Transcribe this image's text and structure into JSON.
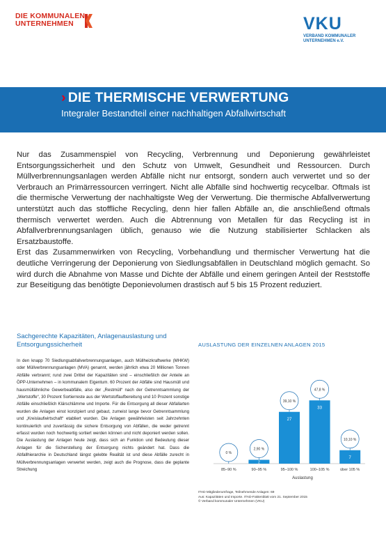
{
  "header": {
    "logo_left_line1": "DIE KOMMUNALEN",
    "logo_left_line2": "UNTERNEHMEN",
    "logo_right_big": "VKU",
    "logo_right_sub1": "VERBAND KOMMUNALER",
    "logo_right_sub2": "UNTERNEHMEN e.V."
  },
  "hero": {
    "chevron": "›",
    "title": "DIE THERMISCHE VERWERTUNG",
    "subtitle": "Integraler Bestandteil einer nachhaltigen Abfallwirtschaft"
  },
  "intro": {
    "p1": "Nur das Zusammenspiel von Recycling, Verbrennung und Deponierung gewährleistet Entsorgungssicherheit und den Schutz von Umwelt, Gesundheit und Ressourcen. Durch Müllverbrennungsanlagen werden Abfälle nicht nur entsorgt, sondern auch verwertet und so der Verbrauch an Primärressourcen verringert. Nicht alle Abfälle sind hochwertig recycelbar. Oftmals ist die thermische Verwertung der nachhaltigste Weg der Verwertung. Die thermische Abfallverwertung unterstützt auch das stoffliche Recycling, denn hier fallen Abfälle an, die anschließend oftmals thermisch verwertet werden. Auch die Abtrennung von Metallen für das Recycling ist in Abfallverbrennungsanlagen üblich, genauso wie die Nutzung stabilisierter Schlacken als Ersatzbaustoffe.",
    "p2": "Erst das Zusammenwirken von Recycling, Vorbehandlung und thermischer Verwertung hat die deutliche Verringerung der Deponierung von Siedlungsabfällen in Deutschland möglich gemacht. So wird durch die Abnahme von Masse und Dichte der Abfälle und einem geringen Anteil der Reststoffe zur Beseitigung das benötigte Deponievolumen drastisch auf 5 bis 15 Prozent reduziert."
  },
  "side": {
    "heading": "Sachgerechte Kapazitäten, Anlagenauslastung und Entsorgungssicherheit",
    "text": "In den knapp 70 Siedlungsabfallverbrennungsanlagen, auch Müllheizkraftwerke (MHKW) oder Müllverbrennungsanlagen (MVA) genannt, werden jährlich etwa 20 Millionen Tonnen Abfälle verbrannt; rund zwei Drittel der Kapazitäten sind – einschließlich der Anteile an ÖPP-Unternehmen – in kommunalem Eigentum. 60 Prozent der Abfälle sind Hausmüll und hausmüllähnliche Gewerbeabfälle, also der „Restmüll“ nach der Getrenntsammlung der „Wertstoffe“, 30 Prozent Sortierreste aus der Wertstoffaufbereitung und 10 Prozent sonstige Abfälle einschließlich Klärschlämme und Importe. Für die Entsorgung all dieser Abfallarten wurden die Anlagen einst konzipiert und gebaut, zumeist lange bevor Getrenntsammlung und „Kreislaufwirtschaft“ etabliert wurden. Die Anlagen gewährleisten seit Jahrzehnten kontinuierlich und zuverlässig die sichere Entsorgung von Abfällen, die weder getrennt erfasst wurden noch hochwertig sortiert werden können und nicht deponiert werden sollen. Die Auslastung der Anlagen heute zeigt, dass sich an Funktion und Bedeutung dieser Anlagen für die Sicherstellung der Entsorgung nichts geändert hat. Dass die Abfallhierarchie in Deutschland längst gelebte Realität ist und diese Abfälle zurecht in Müllverbrennungsanlagen verwertet werden, zeigt auch die Prognose, dass die geplante Streichung"
  },
  "chart_data": {
    "type": "bar",
    "title": "AUSLASTUNG DER EINZELNEN ANLAGEN 2015",
    "xlabel": "Auslastung",
    "ylabel": "",
    "categories": [
      "85–90 %",
      "90–95 %",
      "95–100 %",
      "100–105 %",
      "über 105 %"
    ],
    "values": [
      0,
      2,
      27,
      33,
      7
    ],
    "percent_labels": [
      "0 %",
      "2,90 %",
      "39,10 %",
      "47,8 %",
      "10,10 %"
    ],
    "ylim": [
      0,
      40
    ],
    "bar_color": "#1a8fd6",
    "bubble_border_color": "#1a6eb3",
    "footnote_1": "ITAD Mitgliederumfrage, Teilnehmende Anlagen: 69",
    "footnote_2": "Aus: Kapazitäten und Importe. ITAD-Faktenblatt vom 21. September 2015",
    "footnote_3": "© Verband kommunaler Unternehmen (VKU)"
  },
  "colors": {
    "brand_blue": "#1a6eb3",
    "brand_red": "#d52b1e"
  }
}
